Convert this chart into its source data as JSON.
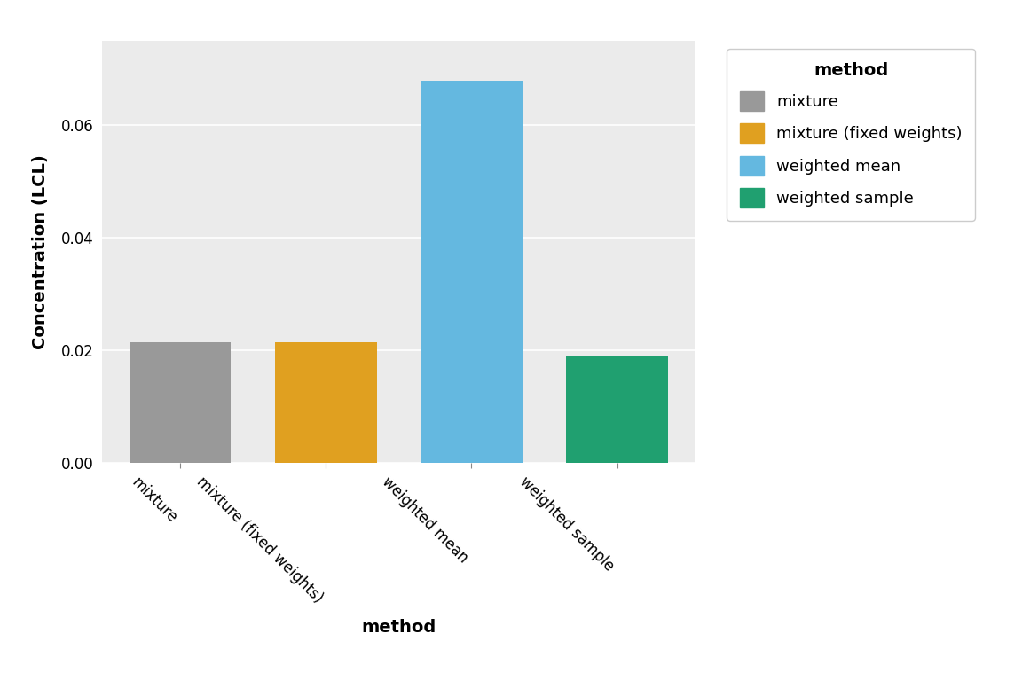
{
  "categories": [
    "mixture",
    "mixture (fixed weights)",
    "weighted mean",
    "weighted sample"
  ],
  "values": [
    0.0215,
    0.0215,
    0.068,
    0.019
  ],
  "bar_colors": [
    "#999999",
    "#E0A020",
    "#64B8E0",
    "#20A070"
  ],
  "xlabel": "method",
  "ylabel": "Concentration (LCL)",
  "ylim": [
    0,
    0.075
  ],
  "yticks": [
    0.0,
    0.02,
    0.04,
    0.06
  ],
  "legend_title": "method",
  "legend_labels": [
    "mixture",
    "mixture (fixed weights)",
    "weighted mean",
    "weighted sample"
  ],
  "legend_colors": [
    "#999999",
    "#E0A020",
    "#64B8E0",
    "#20A070"
  ],
  "background_color": "#EBEBEB",
  "grid_color": "#FFFFFF",
  "bar_width": 0.7,
  "axis_label_fontsize": 14,
  "tick_fontsize": 12,
  "legend_fontsize": 13
}
